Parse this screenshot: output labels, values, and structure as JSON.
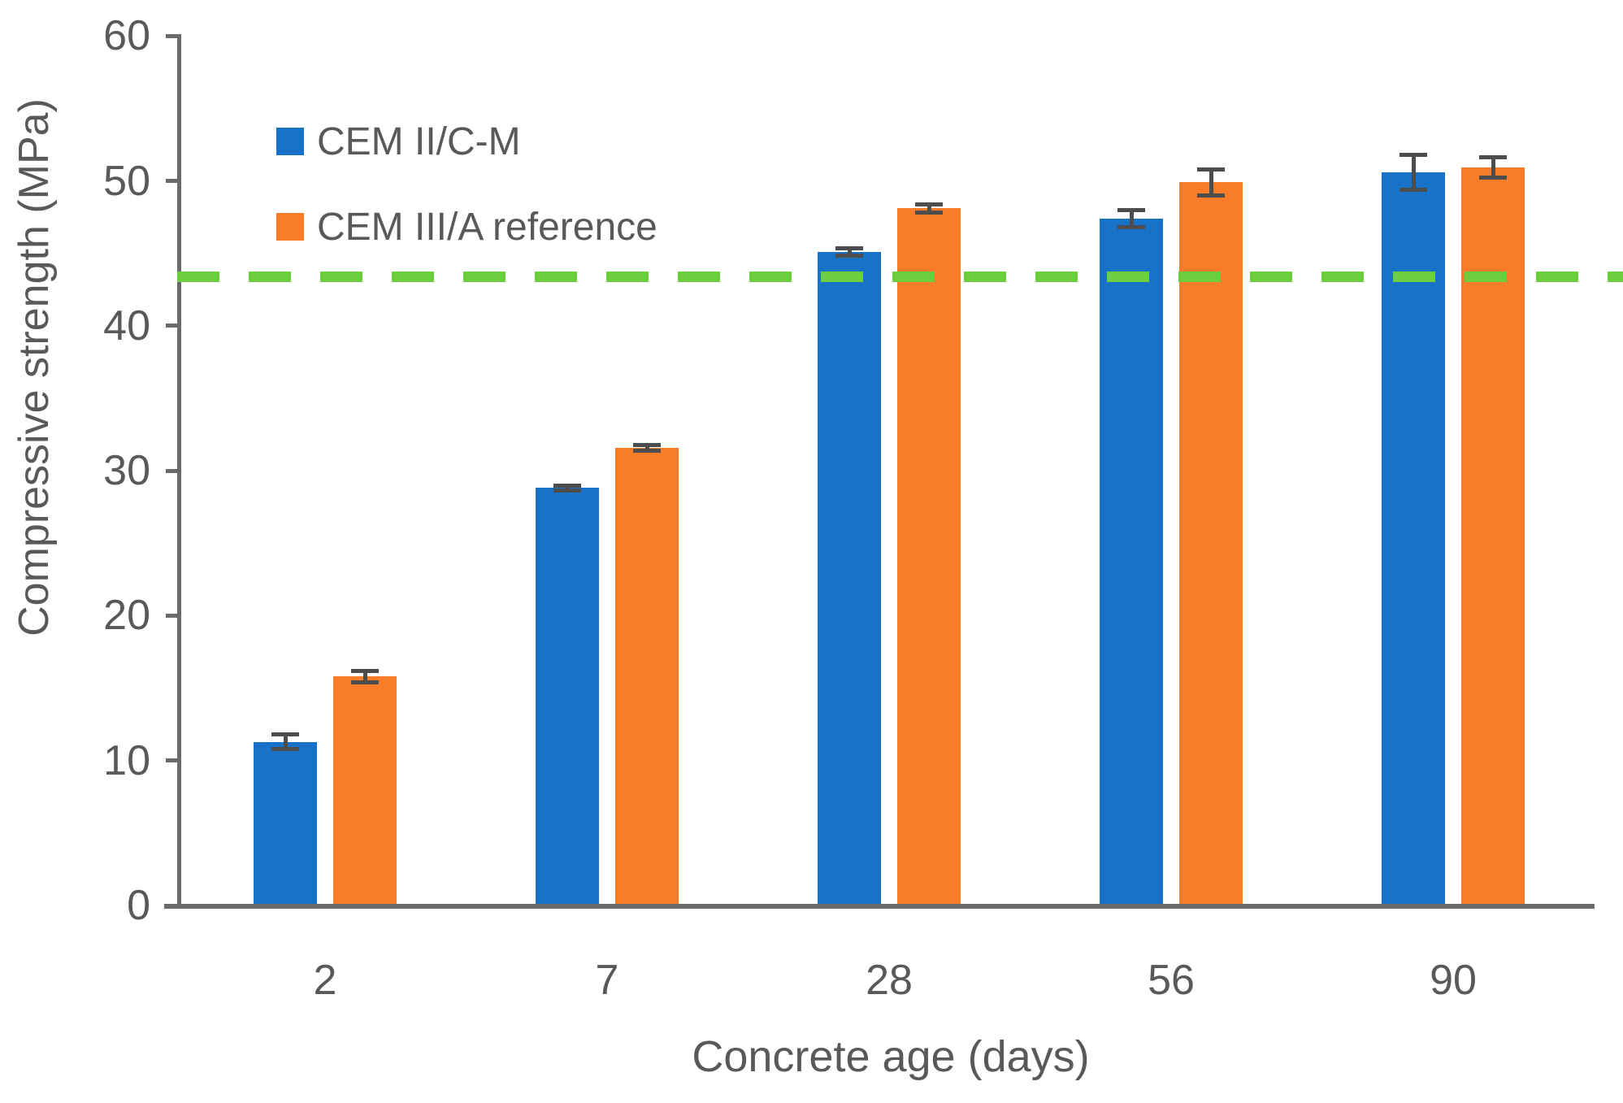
{
  "chart_data": {
    "type": "bar",
    "title": "",
    "xlabel": "Concrete age (days)",
    "ylabel": "Compressive strength (MPa)",
    "categories": [
      "2",
      "7",
      "28",
      "56",
      "90"
    ],
    "series": [
      {
        "name": "CEM II/C-M",
        "color": "#1772C8",
        "values": [
          11.3,
          28.8,
          45.1,
          47.4,
          50.6
        ],
        "errors": [
          0.5,
          0.15,
          0.25,
          0.6,
          1.2
        ]
      },
      {
        "name": "CEM III/A reference",
        "color": "#F97D28",
        "values": [
          15.8,
          31.6,
          48.1,
          49.9,
          50.9
        ],
        "errors": [
          0.4,
          0.2,
          0.3,
          0.9,
          0.7
        ]
      }
    ],
    "reference_line": {
      "value": 43.4,
      "color": "#6CCE3E",
      "style": "dashed"
    },
    "ylim": [
      0,
      60
    ],
    "ytick_step": 10,
    "yticks": [
      "0",
      "10",
      "20",
      "30",
      "40",
      "50",
      "60"
    ],
    "legend_position": "top-left",
    "grid": false,
    "error_bars": true
  },
  "colors": {
    "text": "#595959",
    "axis": "#6A6A6A",
    "error_bar": "#4D4D4D",
    "background": "#FFFFFF"
  }
}
